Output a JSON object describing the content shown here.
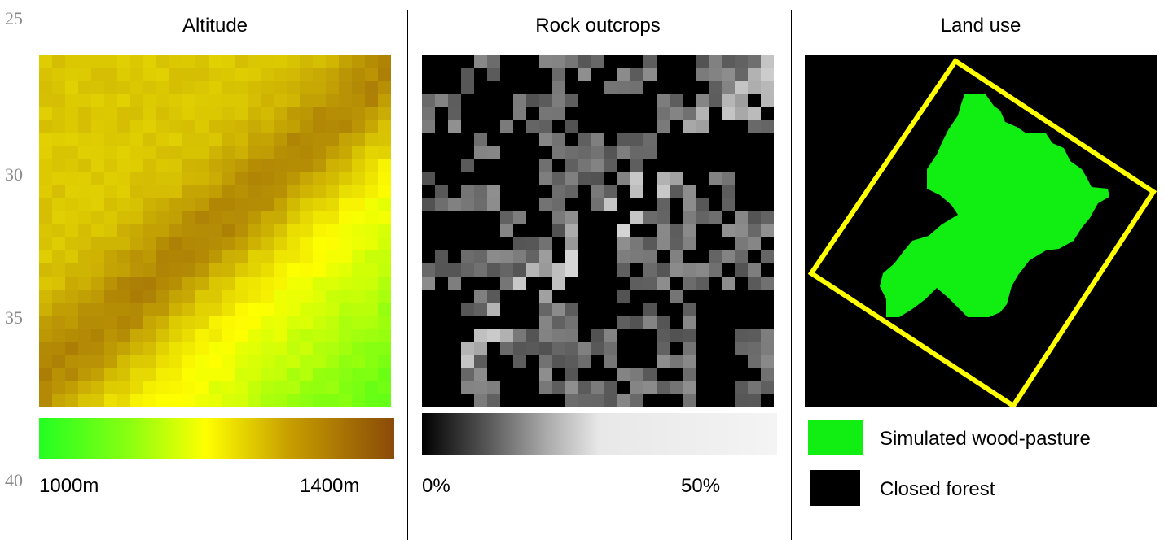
{
  "line_numbers": [
    "25",
    "30",
    "35",
    "40"
  ],
  "panels": [
    {
      "title": "Altitude",
      "scale_min_label": "1000m",
      "scale_max_label": "1400m",
      "colors": {
        "low": "#33ff1c",
        "mid": "#ffff00",
        "high": "#8a4a08"
      }
    },
    {
      "title": "Rock outcrops",
      "scale_min_label": "0%",
      "scale_max_label": "50%",
      "colors": {
        "low": "#000000",
        "high": "#f4f4f4"
      }
    },
    {
      "title": "Land use",
      "legend": [
        {
          "label": "Simulated wood-pasture",
          "color": "#11ee11"
        },
        {
          "label": "Closed forest",
          "color": "#000000"
        }
      ],
      "outline_color": "#ffff00"
    }
  ]
}
